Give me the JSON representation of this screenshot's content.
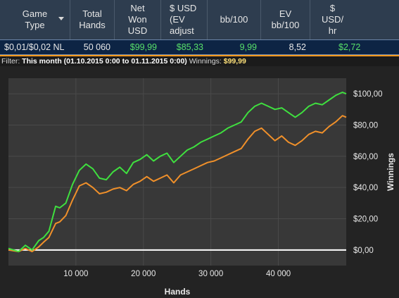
{
  "table": {
    "headers": [
      "Game\nType",
      "Total\nHands",
      "Net\nWon\nUSD",
      "$ USD\n(EV\nadjust",
      "bb/100",
      "EV\nbb/100",
      "$\nUSD/\nhr"
    ],
    "row": [
      "$0,01/$0,02 NL",
      "50 060",
      "$99,99",
      "$85,33",
      "9,99",
      "8,52",
      "$2,72"
    ]
  },
  "filter": {
    "label": "Filter:",
    "value": "This month (01.10.2015 0:00 to 01.11.2015 0:00)",
    "winnings_label": "Winnings:",
    "winnings_value": "$99,99"
  },
  "colors": {
    "net_won": "#3fe03f",
    "ev_adjusted": "#f0902a",
    "zero_line": "#ffffff",
    "accent": "#ff9a1e"
  },
  "chart_data": {
    "type": "line",
    "xlabel": "Hands",
    "ylabel": "Winnings",
    "xlim": [
      0,
      50060
    ],
    "ylim": [
      -10,
      110
    ],
    "x_ticks": [
      10000,
      20000,
      30000,
      40000
    ],
    "x_tick_labels": [
      "10 000",
      "20 000",
      "30 000",
      "40 000"
    ],
    "y_ticks": [
      0,
      20,
      40,
      60,
      80,
      100
    ],
    "y_tick_labels": [
      "$0,00",
      "$20,00",
      "$40,00",
      "$60,00",
      "$80,00",
      "$100,00"
    ],
    "grid": true,
    "series": [
      {
        "color": "#3fe03f",
        "x": [
          0,
          1500,
          2500,
          3500,
          4500,
          5200,
          6000,
          7000,
          7600,
          8500,
          9500,
          10500,
          11500,
          12500,
          13500,
          14500,
          15500,
          16500,
          17500,
          18500,
          19500,
          20500,
          21500,
          22500,
          23500,
          24500,
          25500,
          26500,
          27500,
          28500,
          29500,
          30500,
          31500,
          32500,
          33500,
          34500,
          35500,
          36500,
          37500,
          38500,
          39500,
          40500,
          41500,
          42500,
          43500,
          44500,
          45500,
          46500,
          47500,
          48500,
          49500,
          50060
        ],
        "y": [
          1,
          -1,
          3,
          0,
          6,
          8,
          12,
          28,
          27,
          30,
          42,
          51,
          55,
          52,
          46,
          45,
          50,
          53,
          49,
          56,
          58,
          61,
          57,
          60,
          62,
          56,
          60,
          64,
          66,
          69,
          71,
          73,
          75,
          78,
          80,
          82,
          88,
          92,
          94,
          92,
          90,
          91,
          88,
          85,
          88,
          92,
          94,
          93,
          96,
          99,
          101,
          100
        ]
      },
      {
        "color": "#f0902a",
        "x": [
          0,
          1500,
          2500,
          3500,
          4500,
          5200,
          6000,
          7000,
          7600,
          8500,
          9500,
          10500,
          11500,
          12500,
          13500,
          14500,
          15500,
          16500,
          17500,
          18500,
          19500,
          20500,
          21500,
          22500,
          23500,
          24500,
          25500,
          26500,
          27500,
          28500,
          29500,
          30500,
          31500,
          32500,
          33500,
          34500,
          35500,
          36500,
          37500,
          38500,
          39500,
          40500,
          41500,
          42500,
          43500,
          44500,
          45500,
          46500,
          47500,
          48500,
          49500,
          50060
        ],
        "y": [
          0,
          -1,
          1,
          -1,
          2,
          5,
          8,
          17,
          18,
          22,
          32,
          41,
          43,
          40,
          36,
          37,
          39,
          40,
          38,
          42,
          44,
          47,
          44,
          46,
          48,
          43,
          48,
          50,
          52,
          54,
          56,
          57,
          59,
          61,
          63,
          65,
          71,
          76,
          78,
          74,
          70,
          73,
          69,
          67,
          70,
          74,
          76,
          75,
          79,
          82,
          86,
          85
        ]
      }
    ]
  }
}
